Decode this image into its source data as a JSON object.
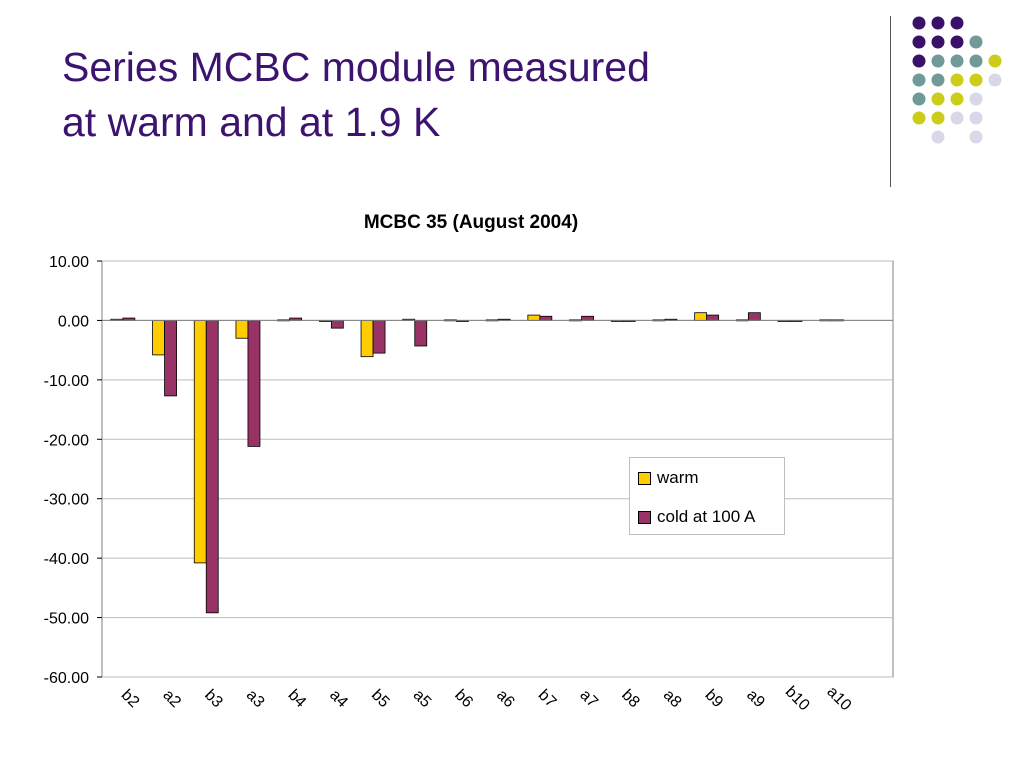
{
  "slide": {
    "title_line1": "Series MCBC module measured",
    "title_line2": "at warm and at 1.9 K"
  },
  "decoration": {
    "colors": [
      "#3a1068",
      "#6f9a98",
      "#cccc1a",
      "#d8d8e8"
    ]
  },
  "chart_data": {
    "type": "bar",
    "title": "MCBC 35 (August 2004)",
    "categories": [
      "b2",
      "a2",
      "b3",
      "a3",
      "b4",
      "a4",
      "b5",
      "a5",
      "b6",
      "a6",
      "b7",
      "a7",
      "b8",
      "a8",
      "b9",
      "a9",
      "b10",
      "a10"
    ],
    "series": [
      {
        "name": "warm",
        "color": "#ffcc00",
        "values": [
          0.2,
          -5.8,
          -40.8,
          -3.0,
          0.1,
          -0.1,
          -6.1,
          0.2,
          0.1,
          0.1,
          0.9,
          0.1,
          0.0,
          0.1,
          1.3,
          0.1,
          0.0,
          0.1
        ]
      },
      {
        "name": "cold at 100 A",
        "color": "#993366",
        "values": [
          0.4,
          -12.7,
          -49.2,
          -21.2,
          0.4,
          -1.3,
          -5.5,
          -4.3,
          0.0,
          0.2,
          0.7,
          0.7,
          0.0,
          0.2,
          0.9,
          1.3,
          0.0,
          0.1
        ]
      }
    ],
    "ylim": [
      -60,
      10
    ],
    "yticks": [
      "10.00",
      "0.00",
      "-10.00",
      "-20.00",
      "-30.00",
      "-40.00",
      "-50.00",
      "-60.00"
    ],
    "ytick_values": [
      10,
      0,
      -10,
      -20,
      -30,
      -40,
      -50,
      -60
    ],
    "grid": true,
    "legend_position": "right"
  }
}
